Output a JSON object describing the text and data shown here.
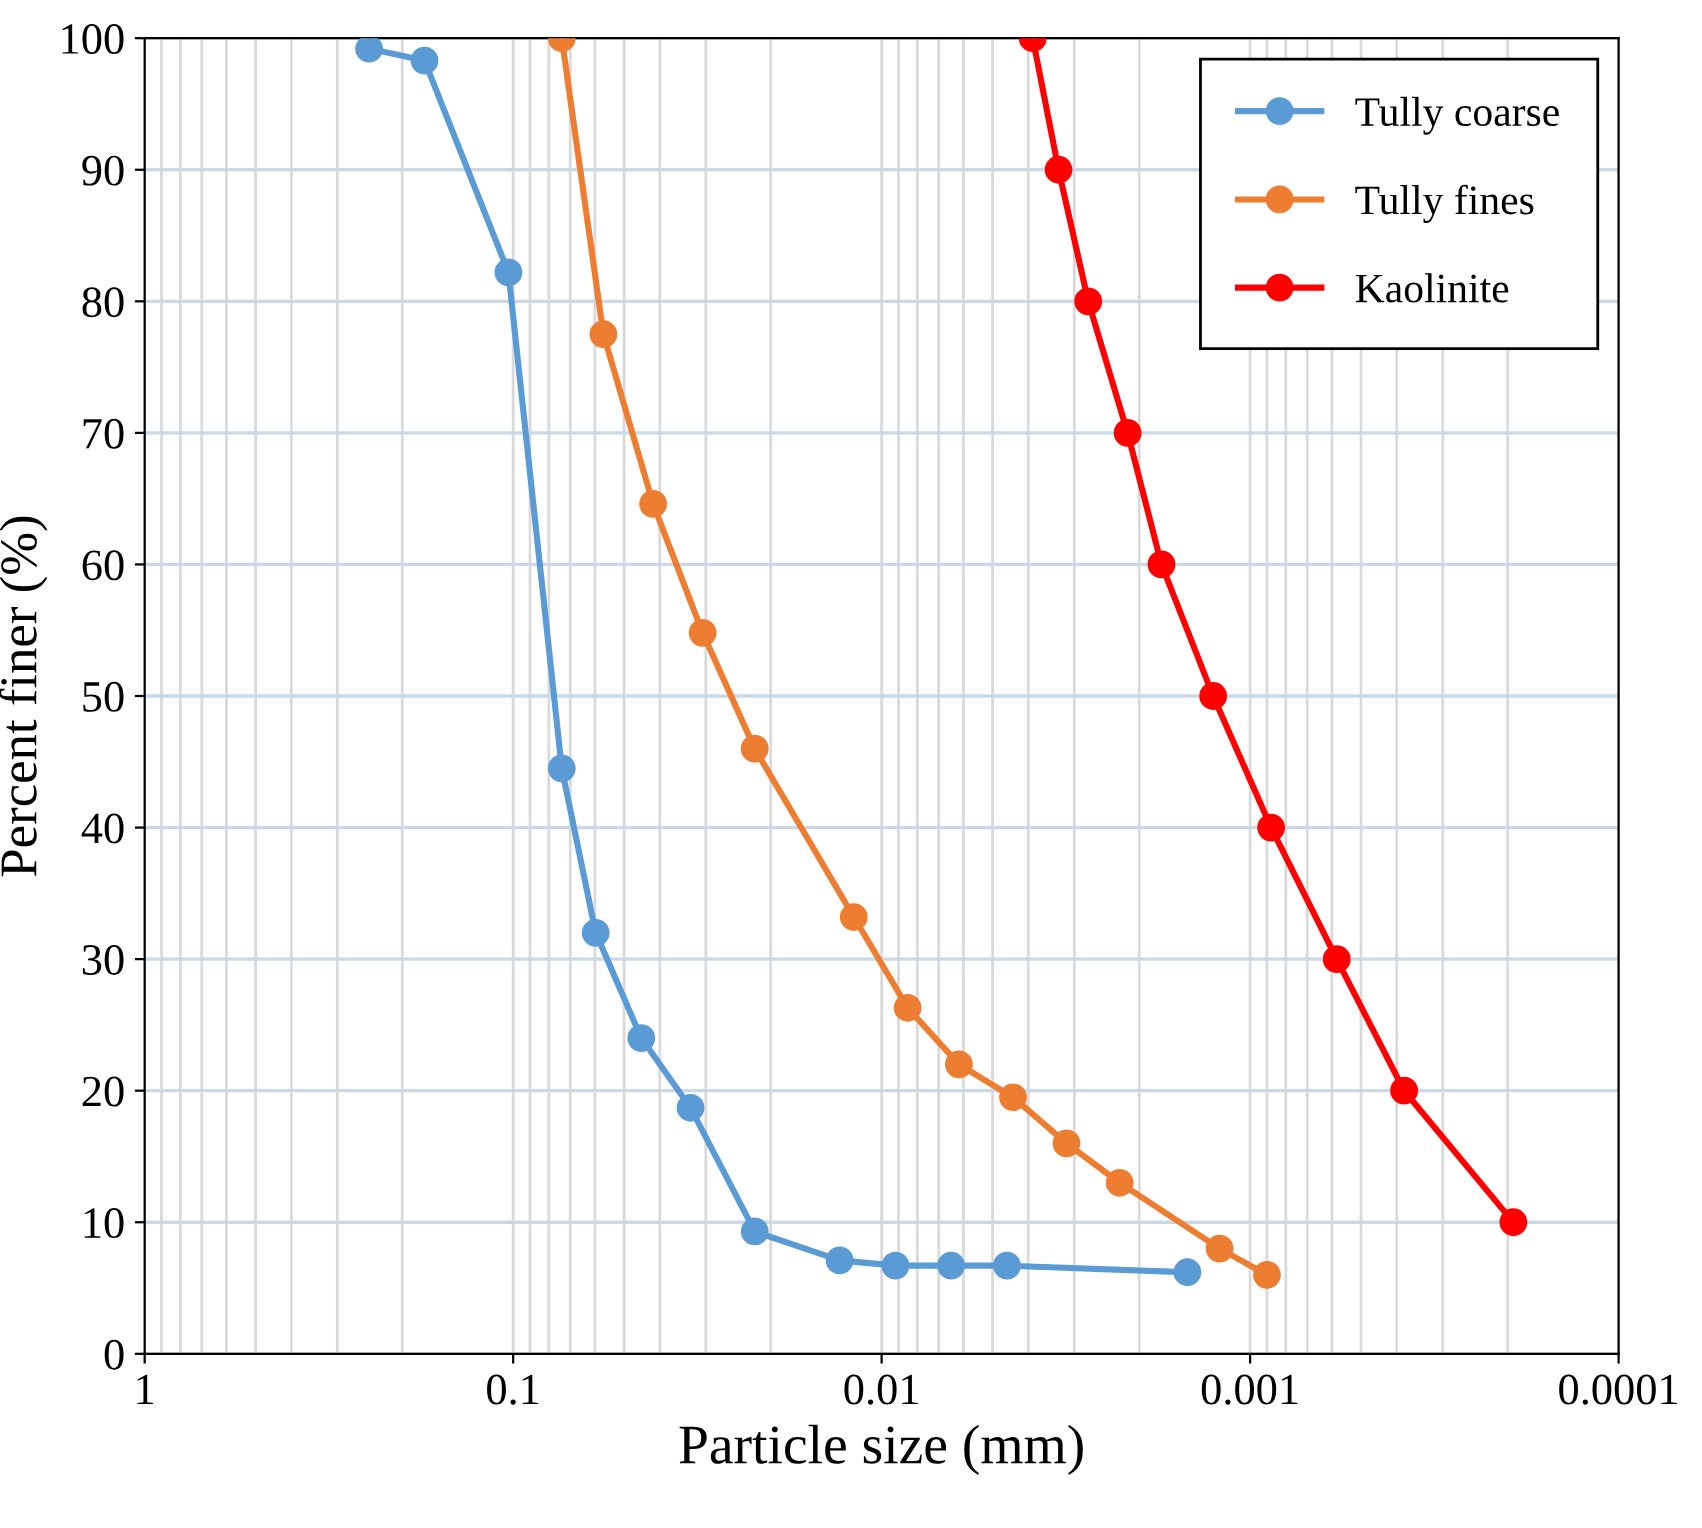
{
  "chart_data": {
    "type": "line",
    "xlabel": "Particle size (mm)",
    "ylabel": "Percent finer (%)",
    "log": "x",
    "xlim": [
      1,
      0.0001
    ],
    "xticks": [
      1,
      0.1,
      0.01,
      0.001,
      0.0001
    ],
    "ylim": [
      0,
      100
    ],
    "yticks": [
      0,
      10,
      20,
      30,
      40,
      50,
      60,
      70,
      80,
      90,
      100
    ],
    "grid": true,
    "legend": "top right",
    "marker": "circle",
    "line_style": "solid",
    "series": [
      {
        "name": "Tully coarse",
        "color": "#5b9bd5",
        "x": [
          0.246,
          0.174,
          0.103,
          0.0738,
          0.0597,
          0.0449,
          0.033,
          0.0221,
          0.013,
          0.00917,
          0.00648,
          0.00457,
          0.00148
        ],
        "values": [
          99.2,
          98.3,
          82.2,
          44.5,
          32,
          24,
          18.7,
          9.3,
          7.1,
          6.7,
          6.7,
          6.7,
          6.2
        ]
      },
      {
        "name": "Tully fines",
        "color": "#ed7d31",
        "x": [
          0.0738,
          0.0569,
          0.0417,
          0.0306,
          0.0221,
          0.0119,
          0.0085,
          0.00617,
          0.0044,
          0.00315,
          0.00226,
          0.00121,
          0.0009
        ],
        "values": [
          100,
          77.5,
          64.6,
          54.8,
          46,
          33.2,
          26.3,
          22,
          19.5,
          16,
          13,
          8,
          6
        ]
      },
      {
        "name": "Kaolinite",
        "color": "#ff0000",
        "x": [
          0.00389,
          0.00331,
          0.00275,
          0.00215,
          0.00174,
          0.00126,
          0.000877,
          0.000582,
          0.000382,
          0.000193
        ],
        "values": [
          100,
          90,
          80,
          70,
          60,
          50,
          40,
          30,
          20,
          10
        ]
      }
    ]
  }
}
